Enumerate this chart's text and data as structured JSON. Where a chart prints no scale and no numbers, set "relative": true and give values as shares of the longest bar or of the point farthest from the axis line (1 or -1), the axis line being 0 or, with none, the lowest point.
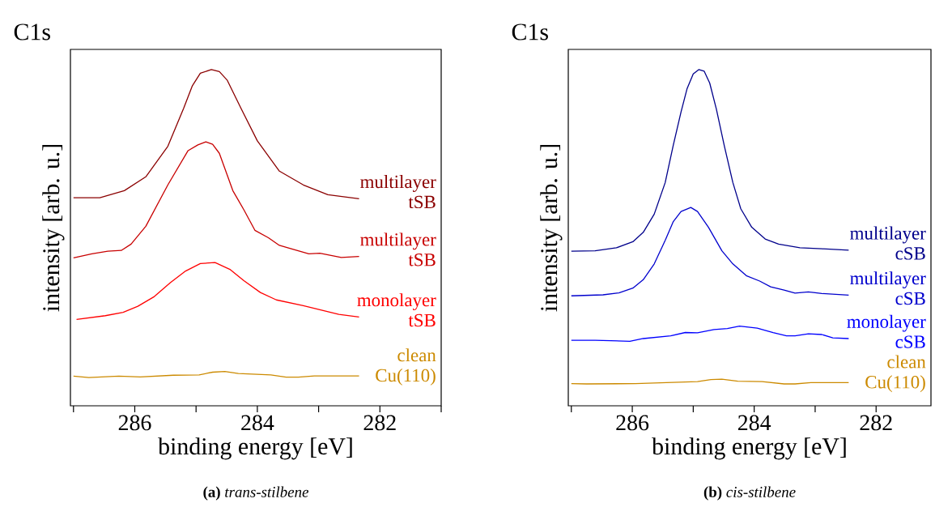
{
  "chart_data": [
    {
      "type": "line",
      "relative": true,
      "title": "C1s",
      "xlabel": "binding energy [eV]",
      "ylabel": "intensity [arb. u.]",
      "annotations": [
        "**(a)** *trans-stilbene*"
      ],
      "xlim": [
        287.05,
        281
      ],
      "xticks": [
        {
          "value": 287,
          "label": null
        },
        286,
        {
          "value": 285,
          "label": null
        },
        284,
        {
          "value": 283,
          "label": null
        },
        282,
        {
          "value": 281,
          "label": null
        }
      ],
      "tick_labels": "x",
      "line_style": "solid",
      "marker": "none",
      "series": [
        {
          "name": "clean Cu(110)",
          "color": "#cc8a00",
          "x": [
            287.0,
            286.75,
            286.26,
            285.91,
            285.37,
            284.95,
            284.73,
            284.53,
            284.31,
            283.78,
            283.53,
            283.33,
            283.07,
            282.71,
            282.34
          ],
          "values": [
            0.088,
            0.084,
            0.088,
            0.086,
            0.091,
            0.092,
            0.1,
            0.102,
            0.096,
            0.092,
            0.085,
            0.085,
            0.089,
            0.089,
            0.089
          ]
        },
        {
          "name": "monolayer tSB",
          "color": "#ff0000",
          "x": [
            286.95,
            286.48,
            286.19,
            285.95,
            285.68,
            285.42,
            285.17,
            284.93,
            284.69,
            284.44,
            284.22,
            283.95,
            283.69,
            283.25,
            282.94,
            282.67,
            282.34
          ],
          "values": [
            0.257,
            0.268,
            0.278,
            0.296,
            0.325,
            0.366,
            0.401,
            0.423,
            0.426,
            0.405,
            0.372,
            0.337,
            0.315,
            0.298,
            0.284,
            0.272,
            0.264
          ]
        },
        {
          "name": "multilayer tSB",
          "color": "#c80000",
          "x": [
            287.0,
            286.7,
            286.44,
            286.22,
            286.06,
            285.82,
            285.46,
            285.13,
            284.97,
            284.84,
            284.73,
            284.62,
            284.4,
            284.22,
            284.04,
            283.82,
            283.64,
            283.47,
            283.16,
            282.98,
            282.63,
            282.34
          ],
          "values": [
            0.44,
            0.452,
            0.46,
            0.462,
            0.481,
            0.534,
            0.657,
            0.759,
            0.776,
            0.785,
            0.778,
            0.751,
            0.64,
            0.583,
            0.522,
            0.5,
            0.477,
            0.468,
            0.452,
            0.454,
            0.441,
            0.444
          ]
        },
        {
          "name": "multilayer tSB",
          "color": "#8b0000",
          "x": [
            287.0,
            286.57,
            286.17,
            285.82,
            285.46,
            285.2,
            285.06,
            284.93,
            284.75,
            284.62,
            284.49,
            284.27,
            284.0,
            283.64,
            283.25,
            282.85,
            282.34
          ],
          "values": [
            0.619,
            0.619,
            0.64,
            0.681,
            0.772,
            0.886,
            0.952,
            0.989,
            1.0,
            0.994,
            0.968,
            0.886,
            0.788,
            0.698,
            0.657,
            0.628,
            0.616
          ]
        }
      ]
    },
    {
      "type": "line",
      "relative": true,
      "title": "C1s",
      "xlabel": "binding energy [eV]",
      "ylabel": "intensity [arb. u.]",
      "annotations": [
        "**(b)** *cis-stilbene*"
      ],
      "xlim": [
        287.05,
        281.1
      ],
      "xticks": [
        {
          "value": 287,
          "label": null
        },
        286,
        {
          "value": 285,
          "label": null
        },
        284,
        {
          "value": 283,
          "label": null
        },
        282
      ],
      "tick_labels": "x",
      "line_style": "solid",
      "marker": "none",
      "series": [
        {
          "name": "clean Cu(110)",
          "color": "#cc8a00",
          "x": [
            287.0,
            286.75,
            285.95,
            284.93,
            284.71,
            284.53,
            284.27,
            283.87,
            283.51,
            283.33,
            283.07,
            282.45
          ],
          "values": [
            0.066,
            0.065,
            0.066,
            0.072,
            0.078,
            0.079,
            0.073,
            0.072,
            0.065,
            0.065,
            0.069,
            0.069
          ]
        },
        {
          "name": "monolayer cSB",
          "color": "#0000ff",
          "x": [
            287.0,
            286.61,
            286.04,
            285.82,
            285.37,
            285.13,
            284.93,
            284.66,
            284.44,
            284.24,
            283.95,
            283.69,
            283.47,
            283.33,
            283.11,
            282.89,
            282.71,
            282.45
          ],
          "values": [
            0.195,
            0.195,
            0.192,
            0.2,
            0.208,
            0.218,
            0.217,
            0.227,
            0.23,
            0.237,
            0.231,
            0.218,
            0.208,
            0.208,
            0.214,
            0.212,
            0.202,
            0.2
          ]
        },
        {
          "name": "multilayer cSB",
          "color": "#0000cd",
          "x": [
            287.0,
            286.48,
            286.22,
            285.99,
            285.82,
            285.64,
            285.46,
            285.33,
            285.2,
            285.04,
            284.93,
            284.75,
            284.53,
            284.35,
            284.13,
            283.91,
            283.73,
            283.51,
            283.33,
            283.11,
            282.89,
            282.45
          ],
          "values": [
            0.327,
            0.33,
            0.336,
            0.35,
            0.375,
            0.422,
            0.492,
            0.547,
            0.578,
            0.59,
            0.578,
            0.531,
            0.461,
            0.422,
            0.387,
            0.371,
            0.354,
            0.344,
            0.335,
            0.339,
            0.334,
            0.329
          ]
        },
        {
          "name": "multilayer cSB",
          "color": "#00008b",
          "x": [
            287.0,
            286.61,
            286.26,
            285.99,
            285.82,
            285.64,
            285.46,
            285.33,
            285.2,
            285.1,
            285.0,
            284.91,
            284.82,
            284.73,
            284.62,
            284.49,
            284.35,
            284.22,
            284.04,
            283.82,
            283.6,
            283.25,
            282.89,
            282.45
          ],
          "values": [
            0.46,
            0.461,
            0.47,
            0.488,
            0.516,
            0.57,
            0.664,
            0.773,
            0.874,
            0.944,
            0.987,
            1.0,
            0.995,
            0.96,
            0.882,
            0.773,
            0.664,
            0.586,
            0.531,
            0.496,
            0.481,
            0.47,
            0.467,
            0.463
          ]
        }
      ]
    }
  ]
}
